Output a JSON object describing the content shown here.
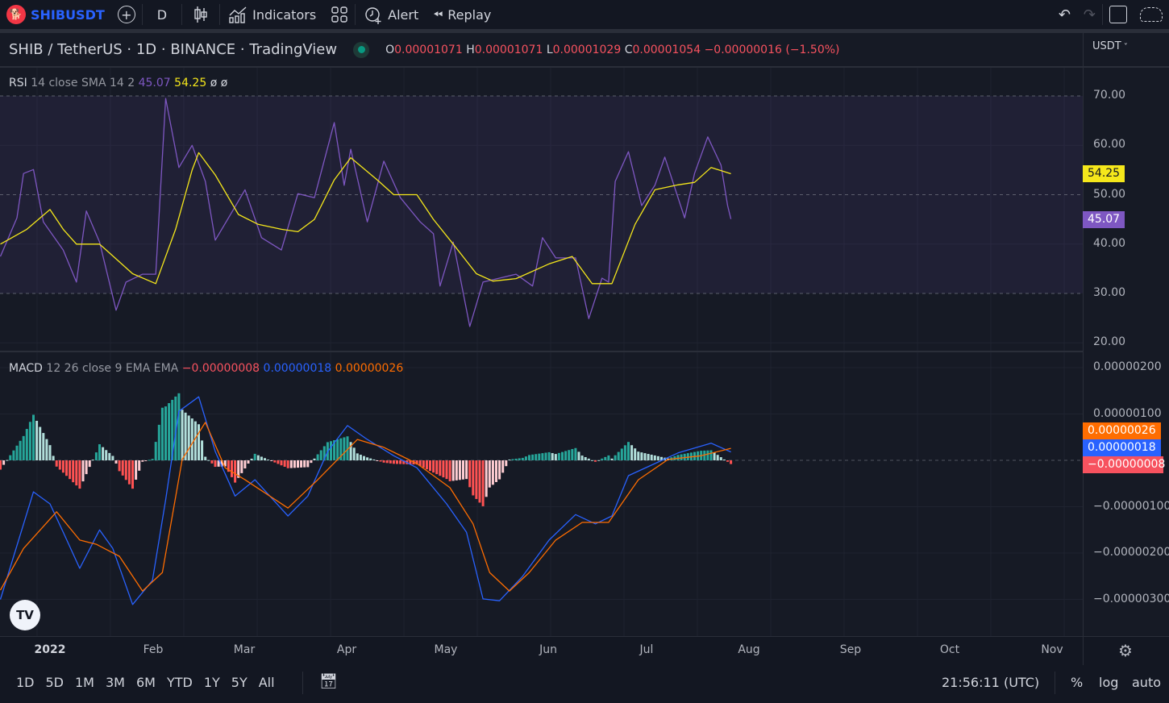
{
  "toolbar": {
    "symbol": "SHIBUSDT",
    "interval": "D",
    "indicators": "Indicators",
    "alert": "Alert",
    "replay": "Replay"
  },
  "header": {
    "title": "SHIB / TetherUS · 1D · BINANCE · TradingView",
    "o_label": "O",
    "o": "0.00001071",
    "h_label": "H",
    "h": "0.00001071",
    "l_label": "L",
    "l": "0.00001029",
    "c_label": "C",
    "c": "0.00001054",
    "change": "−0.00000016 (−1.50%)",
    "currency": "USDT"
  },
  "rsi_legend": {
    "name": "RSI",
    "params": "14 close SMA 14 2",
    "rsi": "45.07",
    "sma": "54.25",
    "extra1": "ø",
    "extra2": "ø"
  },
  "macd_legend": {
    "name": "MACD",
    "params": "12 26 close 9 EMA EMA",
    "hist": "−0.00000008",
    "macd": "0.00000018",
    "signal": "0.00000026"
  },
  "colors": {
    "rsi": "#7e57c2",
    "rsi_sma": "#f5e71b",
    "macd": "#2962ff",
    "signal": "#ff6d00",
    "hist_pos": "#26a69a",
    "hist_pos_light": "#b2dfdb",
    "hist_neg": "#ff5252",
    "hist_neg_light": "#ffcdd2",
    "background": "#161a25"
  },
  "chart_data": [
    {
      "type": "line",
      "title": "RSI 14 close SMA 14 2",
      "ylim": [
        20,
        72
      ],
      "yticks": [
        "70.00",
        "60.00",
        "50.00",
        "40.00",
        "30.00",
        "20.00"
      ],
      "bands": [
        30,
        50,
        70
      ],
      "series": [
        {
          "name": "RSI",
          "color": "#7e57c2",
          "points": [
            [
              "2021-12-17",
              37.5
            ],
            [
              "2021-12-22",
              45.3
            ],
            [
              "2021-12-24",
              54.3
            ],
            [
              "2021-12-27",
              55.1
            ],
            [
              "2021-12-30",
              44.5
            ],
            [
              "2022-01-05",
              38.8
            ],
            [
              "2022-01-09",
              32.3
            ],
            [
              "2022-01-12",
              46.7
            ],
            [
              "2022-01-16",
              40.4
            ],
            [
              "2022-01-21",
              26.6
            ],
            [
              "2022-01-24",
              32.3
            ],
            [
              "2022-01-29",
              33.9
            ],
            [
              "2022-02-02",
              33.9
            ],
            [
              "2022-02-05",
              69.5
            ],
            [
              "2022-02-09",
              55.5
            ],
            [
              "2022-02-13",
              60
            ],
            [
              "2022-02-17",
              52.7
            ],
            [
              "2022-02-20",
              40.8
            ],
            [
              "2022-02-24",
              45.3
            ],
            [
              "2022-03-01",
              51
            ],
            [
              "2022-03-06",
              41.3
            ],
            [
              "2022-03-12",
              38.8
            ],
            [
              "2022-03-17",
              50.2
            ],
            [
              "2022-03-22",
              49.4
            ],
            [
              "2022-03-28",
              64.6
            ],
            [
              "2022-03-31",
              51.9
            ],
            [
              "2022-04-02",
              59.2
            ],
            [
              "2022-04-07",
              44.5
            ],
            [
              "2022-04-12",
              56.8
            ],
            [
              "2022-04-17",
              49.4
            ],
            [
              "2022-04-23",
              44.5
            ],
            [
              "2022-04-27",
              42.1
            ],
            [
              "2022-04-29",
              31.5
            ],
            [
              "2022-05-03",
              40.4
            ],
            [
              "2022-05-08",
              23.3
            ],
            [
              "2022-05-12",
              32.3
            ],
            [
              "2022-05-17",
              33.1
            ],
            [
              "2022-05-22",
              33.9
            ],
            [
              "2022-05-27",
              31.5
            ],
            [
              "2022-05-30",
              41.3
            ],
            [
              "2022-06-03",
              37.2
            ],
            [
              "2022-06-09",
              37.2
            ],
            [
              "2022-06-13",
              24.9
            ],
            [
              "2022-06-17",
              33.1
            ],
            [
              "2022-06-19",
              32.3
            ],
            [
              "2022-06-21",
              52.7
            ],
            [
              "2022-06-25",
              58.7
            ],
            [
              "2022-06-29",
              47.8
            ],
            [
              "2022-07-03",
              51.9
            ],
            [
              "2022-07-06",
              57.6
            ],
            [
              "2022-07-12",
              45.3
            ],
            [
              "2022-07-15",
              54.3
            ],
            [
              "2022-07-19",
              61.7
            ],
            [
              "2022-07-23",
              56
            ],
            [
              "2022-07-25",
              47.8
            ],
            [
              "2022-07-26",
              45.07
            ]
          ]
        },
        {
          "name": "SMA",
          "color": "#f5e71b",
          "points": [
            [
              "2021-12-17",
              40
            ],
            [
              "2021-12-25",
              43
            ],
            [
              "2022-01-01",
              47
            ],
            [
              "2022-01-05",
              43
            ],
            [
              "2022-01-09",
              40
            ],
            [
              "2022-01-16",
              40
            ],
            [
              "2022-01-21",
              37
            ],
            [
              "2022-01-26",
              34
            ],
            [
              "2022-02-02",
              32
            ],
            [
              "2022-02-08",
              43
            ],
            [
              "2022-02-13",
              55
            ],
            [
              "2022-02-15",
              58.5
            ],
            [
              "2022-02-20",
              54
            ],
            [
              "2022-02-27",
              46
            ],
            [
              "2022-03-05",
              44
            ],
            [
              "2022-03-12",
              43
            ],
            [
              "2022-03-17",
              42.5
            ],
            [
              "2022-03-22",
              45
            ],
            [
              "2022-03-28",
              53
            ],
            [
              "2022-04-02",
              57.5
            ],
            [
              "2022-04-10",
              53
            ],
            [
              "2022-04-15",
              50
            ],
            [
              "2022-04-22",
              50
            ],
            [
              "2022-04-27",
              45
            ],
            [
              "2022-05-03",
              40
            ],
            [
              "2022-05-10",
              34
            ],
            [
              "2022-05-15",
              32.5
            ],
            [
              "2022-05-22",
              33
            ],
            [
              "2022-06-01",
              36
            ],
            [
              "2022-06-08",
              37.5
            ],
            [
              "2022-06-14",
              32
            ],
            [
              "2022-06-20",
              32
            ],
            [
              "2022-06-27",
              44
            ],
            [
              "2022-07-03",
              51
            ],
            [
              "2022-07-10",
              52
            ],
            [
              "2022-07-15",
              52.5
            ],
            [
              "2022-07-20",
              55.5
            ],
            [
              "2022-07-26",
              54.25
            ]
          ]
        }
      ]
    },
    {
      "type": "line",
      "title": "MACD 12 26 close 9 EMA EMA",
      "ylim": [
        -3.8e-06,
        2.2e-06
      ],
      "yticks": [
        "0.00000200",
        "0.00000100",
        "−0.00000100",
        "−0.00000200",
        "−0.00000300"
      ],
      "histogram": "MACD − Signal",
      "series": [
        {
          "name": "MACD",
          "color": "#2962ff",
          "points": [
            [
              "2021-12-17",
              -3e-06
            ],
            [
              "2021-12-27",
              -6.8e-07
            ],
            [
              "2022-01-01",
              -9.4e-07
            ],
            [
              "2022-01-05",
              -1.55e-06
            ],
            [
              "2022-01-10",
              -2.33e-06
            ],
            [
              "2022-01-16",
              -1.5e-06
            ],
            [
              "2022-01-20",
              -1.9e-06
            ],
            [
              "2022-01-26",
              -3.11e-06
            ],
            [
              "2022-02-01",
              -2.59e-06
            ],
            [
              "2022-02-05",
              -8.5e-07
            ],
            [
              "2022-02-09",
              1.06e-06
            ],
            [
              "2022-02-15",
              1.37e-06
            ],
            [
              "2022-02-20",
              1.9e-07
            ],
            [
              "2022-02-26",
              -7.7e-07
            ],
            [
              "2022-03-04",
              -4.2e-07
            ],
            [
              "2022-03-14",
              -1.2e-06
            ],
            [
              "2022-03-20",
              -7.7e-07
            ],
            [
              "2022-03-26",
              1.9e-07
            ],
            [
              "2022-04-01",
              7.5e-07
            ],
            [
              "2022-04-07",
              4.5e-07
            ],
            [
              "2022-04-15",
              1e-07
            ],
            [
              "2022-04-22",
              -1.6e-07
            ],
            [
              "2022-05-01",
              -9.4e-07
            ],
            [
              "2022-05-07",
              -1.55e-06
            ],
            [
              "2022-05-12",
              -2.99e-06
            ],
            [
              "2022-05-17",
              -3.03e-06
            ],
            [
              "2022-05-24",
              -2.5e-06
            ],
            [
              "2022-06-01",
              -1.72e-06
            ],
            [
              "2022-06-09",
              -1.17e-06
            ],
            [
              "2022-06-15",
              -1.37e-06
            ],
            [
              "2022-06-20",
              -1.2e-06
            ],
            [
              "2022-06-25",
              -3.3e-07
            ],
            [
              "2022-07-03",
              -7e-08
            ],
            [
              "2022-07-10",
              1.6e-07
            ],
            [
              "2022-07-20",
              3.7e-07
            ],
            [
              "2022-07-26",
              1.8e-07
            ]
          ]
        },
        {
          "name": "Signal",
          "color": "#ff6d00",
          "points": [
            [
              "2021-12-17",
              -2.8e-06
            ],
            [
              "2021-12-24",
              -1.9e-06
            ],
            [
              "2022-01-03",
              -1.11e-06
            ],
            [
              "2022-01-10",
              -1.72e-06
            ],
            [
              "2022-01-15",
              -1.81e-06
            ],
            [
              "2022-01-22",
              -2.07e-06
            ],
            [
              "2022-01-29",
              -2.82e-06
            ],
            [
              "2022-02-04",
              -2.42e-06
            ],
            [
              "2022-02-10",
              2e-08
            ],
            [
              "2022-02-17",
              8.2e-07
            ],
            [
              "2022-02-23",
              -1.6e-07
            ],
            [
              "2022-03-01",
              -4.2e-07
            ],
            [
              "2022-03-14",
              -1.03e-06
            ],
            [
              "2022-03-23",
              -4.2e-07
            ],
            [
              "2022-04-04",
              4.5e-07
            ],
            [
              "2022-04-12",
              2.8e-07
            ],
            [
              "2022-04-22",
              -7e-08
            ],
            [
              "2022-05-02",
              -5.9e-07
            ],
            [
              "2022-05-09",
              -1.37e-06
            ],
            [
              "2022-05-14",
              -2.42e-06
            ],
            [
              "2022-05-20",
              -2.82e-06
            ],
            [
              "2022-05-26",
              -2.42e-06
            ],
            [
              "2022-06-03",
              -1.72e-06
            ],
            [
              "2022-06-11",
              -1.34e-06
            ],
            [
              "2022-06-19",
              -1.34e-06
            ],
            [
              "2022-06-28",
              -4.2e-07
            ],
            [
              "2022-07-07",
              2e-08
            ],
            [
              "2022-07-17",
              1e-07
            ],
            [
              "2022-07-26",
              2.6e-07
            ]
          ]
        }
      ]
    }
  ],
  "price_tags": {
    "rsi_sma": "54.25",
    "rsi": "45.07",
    "signal": "0.00000026",
    "macd": "0.00000018",
    "hist": "−0.00000008"
  },
  "time_axis": [
    "2022",
    "Feb",
    "Mar",
    "Apr",
    "May",
    "Jun",
    "Jul",
    "Aug",
    "Sep",
    "Oct",
    "Nov"
  ],
  "bottom": {
    "ranges": [
      "1D",
      "5D",
      "1M",
      "3M",
      "6M",
      "YTD",
      "1Y",
      "5Y",
      "All"
    ],
    "clock": "21:56:11 (UTC)",
    "percent": "%",
    "log": "log",
    "auto": "auto"
  }
}
